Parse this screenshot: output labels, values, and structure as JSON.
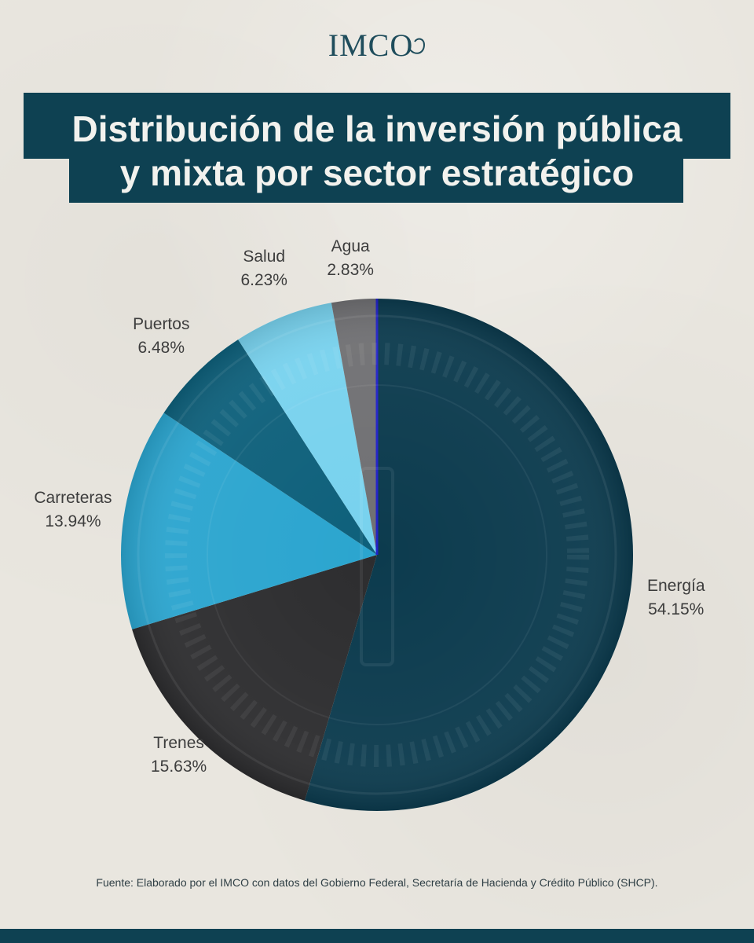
{
  "logo": "IMCO",
  "title_line1": "Distribución de la inversión pública",
  "title_line2": "y mixta por sector estratégico",
  "source": "Fuente: Elaborado por el IMCO con datos del Gobierno Federal, Secretaría de Hacienda y Crédito Público (SHCP).",
  "colors": {
    "navy": "#0e4152",
    "energia": "#0c3b4e",
    "trenes": "#2d2d2f",
    "carreteras": "#2ba5cf",
    "puertos": "#0e607b",
    "salud": "#78d2ee",
    "agua": "#707073",
    "divider": "#2222c8"
  },
  "chart_data": {
    "type": "pie",
    "title": "Distribución de la inversión pública y mixta por sector estratégico",
    "slices": [
      {
        "label": "Energía",
        "value": 54.15,
        "display": "54.15%"
      },
      {
        "label": "Trenes",
        "value": 15.63,
        "display": "15.63%"
      },
      {
        "label": "Carreteras",
        "value": 13.94,
        "display": "13.94%"
      },
      {
        "label": "Puertos",
        "value": 6.48,
        "display": "6.48%"
      },
      {
        "label": "Salud",
        "value": 6.23,
        "display": "6.23%"
      },
      {
        "label": "Agua",
        "value": 2.83,
        "display": "2.83%"
      }
    ],
    "start": "12 o'clock, clockwise",
    "legend": "none (labels next to slices)"
  }
}
